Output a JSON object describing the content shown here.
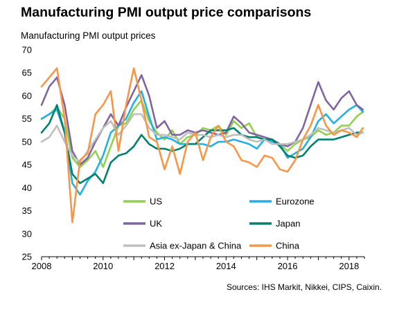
{
  "title": "Manufacturing PMI output price comparisons",
  "source": "Sources: IHS Markit, Nikkei, CIPS, Caixin.",
  "chart_data": {
    "type": "line",
    "title": "Manufacturing PMI output price comparisons",
    "ylabel": "Manufacturing PMI output prices",
    "xlabel": "",
    "xlim": [
      2008,
      2018.5
    ],
    "ylim": [
      25,
      70
    ],
    "yticks": [
      25,
      30,
      35,
      40,
      45,
      50,
      55,
      60,
      65,
      70
    ],
    "xticks": [
      2008,
      2010,
      2012,
      2014,
      2016,
      2018
    ],
    "grid": false,
    "legend_position": "inside-bottom",
    "x": [
      2008.0,
      2008.25,
      2008.5,
      2008.75,
      2009.0,
      2009.25,
      2009.5,
      2009.75,
      2010.0,
      2010.25,
      2010.5,
      2010.75,
      2011.0,
      2011.25,
      2011.5,
      2011.75,
      2012.0,
      2012.25,
      2012.5,
      2012.75,
      2013.0,
      2013.25,
      2013.5,
      2013.75,
      2014.0,
      2014.25,
      2014.5,
      2014.75,
      2015.0,
      2015.25,
      2015.5,
      2015.75,
      2016.0,
      2016.25,
      2016.5,
      2016.75,
      2017.0,
      2017.25,
      2017.5,
      2017.75,
      2018.0,
      2018.25,
      2018.45
    ],
    "series": [
      {
        "name": "US",
        "color": "#92d050",
        "values": [
          55.0,
          56.0,
          57.5,
          55.0,
          46.5,
          44.5,
          46.0,
          48.0,
          44.5,
          49.0,
          53.5,
          54.0,
          57.0,
          59.0,
          54.5,
          52.0,
          50.5,
          52.5,
          49.5,
          51.0,
          51.5,
          53.0,
          52.5,
          53.5,
          51.5,
          54.5,
          53.0,
          54.0,
          51.0,
          50.5,
          50.5,
          49.5,
          48.0,
          49.5,
          50.5,
          51.0,
          52.5,
          51.5,
          52.0,
          53.5,
          53.5,
          55.5,
          56.5
        ]
      },
      {
        "name": "Eurozone",
        "color": "#22b0e8",
        "values": [
          55.0,
          56.0,
          57.0,
          52.0,
          41.0,
          38.5,
          41.5,
          43.5,
          47.0,
          52.0,
          53.5,
          55.0,
          58.5,
          61.0,
          55.5,
          50.5,
          51.0,
          50.5,
          49.5,
          49.5,
          49.5,
          49.5,
          49.0,
          50.0,
          50.0,
          50.5,
          50.0,
          49.5,
          48.5,
          50.5,
          50.0,
          49.5,
          46.5,
          47.5,
          48.5,
          51.0,
          54.5,
          56.0,
          54.0,
          55.5,
          57.0,
          58.0,
          56.5
        ]
      },
      {
        "name": "UK",
        "color": "#8064a2",
        "values": [
          58.0,
          62.0,
          64.0,
          58.0,
          48.0,
          45.0,
          46.5,
          50.0,
          53.0,
          56.0,
          53.5,
          57.5,
          61.0,
          64.5,
          60.0,
          53.0,
          54.5,
          51.5,
          51.5,
          52.5,
          52.0,
          52.5,
          52.0,
          51.5,
          52.0,
          55.5,
          54.0,
          52.0,
          51.5,
          51.0,
          50.5,
          49.5,
          49.0,
          50.0,
          53.0,
          58.0,
          63.0,
          59.0,
          57.0,
          59.5,
          61.0,
          58.0,
          57.0
        ]
      },
      {
        "name": "Japan",
        "color": "#00806e",
        "values": [
          52.0,
          54.0,
          58.0,
          52.0,
          43.0,
          41.0,
          42.0,
          43.0,
          41.0,
          45.5,
          47.0,
          47.5,
          49.0,
          51.5,
          49.5,
          48.5,
          48.5,
          48.0,
          48.5,
          49.5,
          49.5,
          51.0,
          52.5,
          52.5,
          52.5,
          53.0,
          51.5,
          51.0,
          51.0,
          50.5,
          50.5,
          49.0,
          47.0,
          46.5,
          47.0,
          49.0,
          50.5,
          50.5,
          50.5,
          51.0,
          51.5,
          52.0,
          52.0
        ]
      },
      {
        "name": "Asia ex-Japan & China",
        "color": "#bfbfbf",
        "values": [
          50.0,
          51.0,
          53.5,
          50.0,
          47.0,
          45.5,
          48.0,
          50.5,
          53.0,
          54.5,
          51.5,
          53.5,
          56.0,
          56.0,
          53.0,
          51.5,
          51.5,
          51.0,
          50.5,
          52.0,
          51.5,
          51.5,
          51.0,
          51.5,
          51.0,
          51.5,
          51.5,
          50.5,
          50.0,
          50.5,
          49.5,
          49.5,
          49.5,
          50.0,
          50.5,
          51.5,
          53.0,
          52.5,
          52.0,
          52.5,
          53.0,
          51.5,
          52.0
        ]
      },
      {
        "name": "China",
        "color": "#f79646",
        "values": [
          62.0,
          64.0,
          66.0,
          55.0,
          32.5,
          46.0,
          47.5,
          56.0,
          58.0,
          61.0,
          48.0,
          58.0,
          66.0,
          59.0,
          51.0,
          50.0,
          44.0,
          49.0,
          43.0,
          50.0,
          52.0,
          46.0,
          51.0,
          53.5,
          50.0,
          49.0,
          46.0,
          45.5,
          44.5,
          47.0,
          46.5,
          44.0,
          43.5,
          46.0,
          50.5,
          53.5,
          58.0,
          53.5,
          51.5,
          52.5,
          52.0,
          51.0,
          53.0
        ]
      }
    ]
  }
}
